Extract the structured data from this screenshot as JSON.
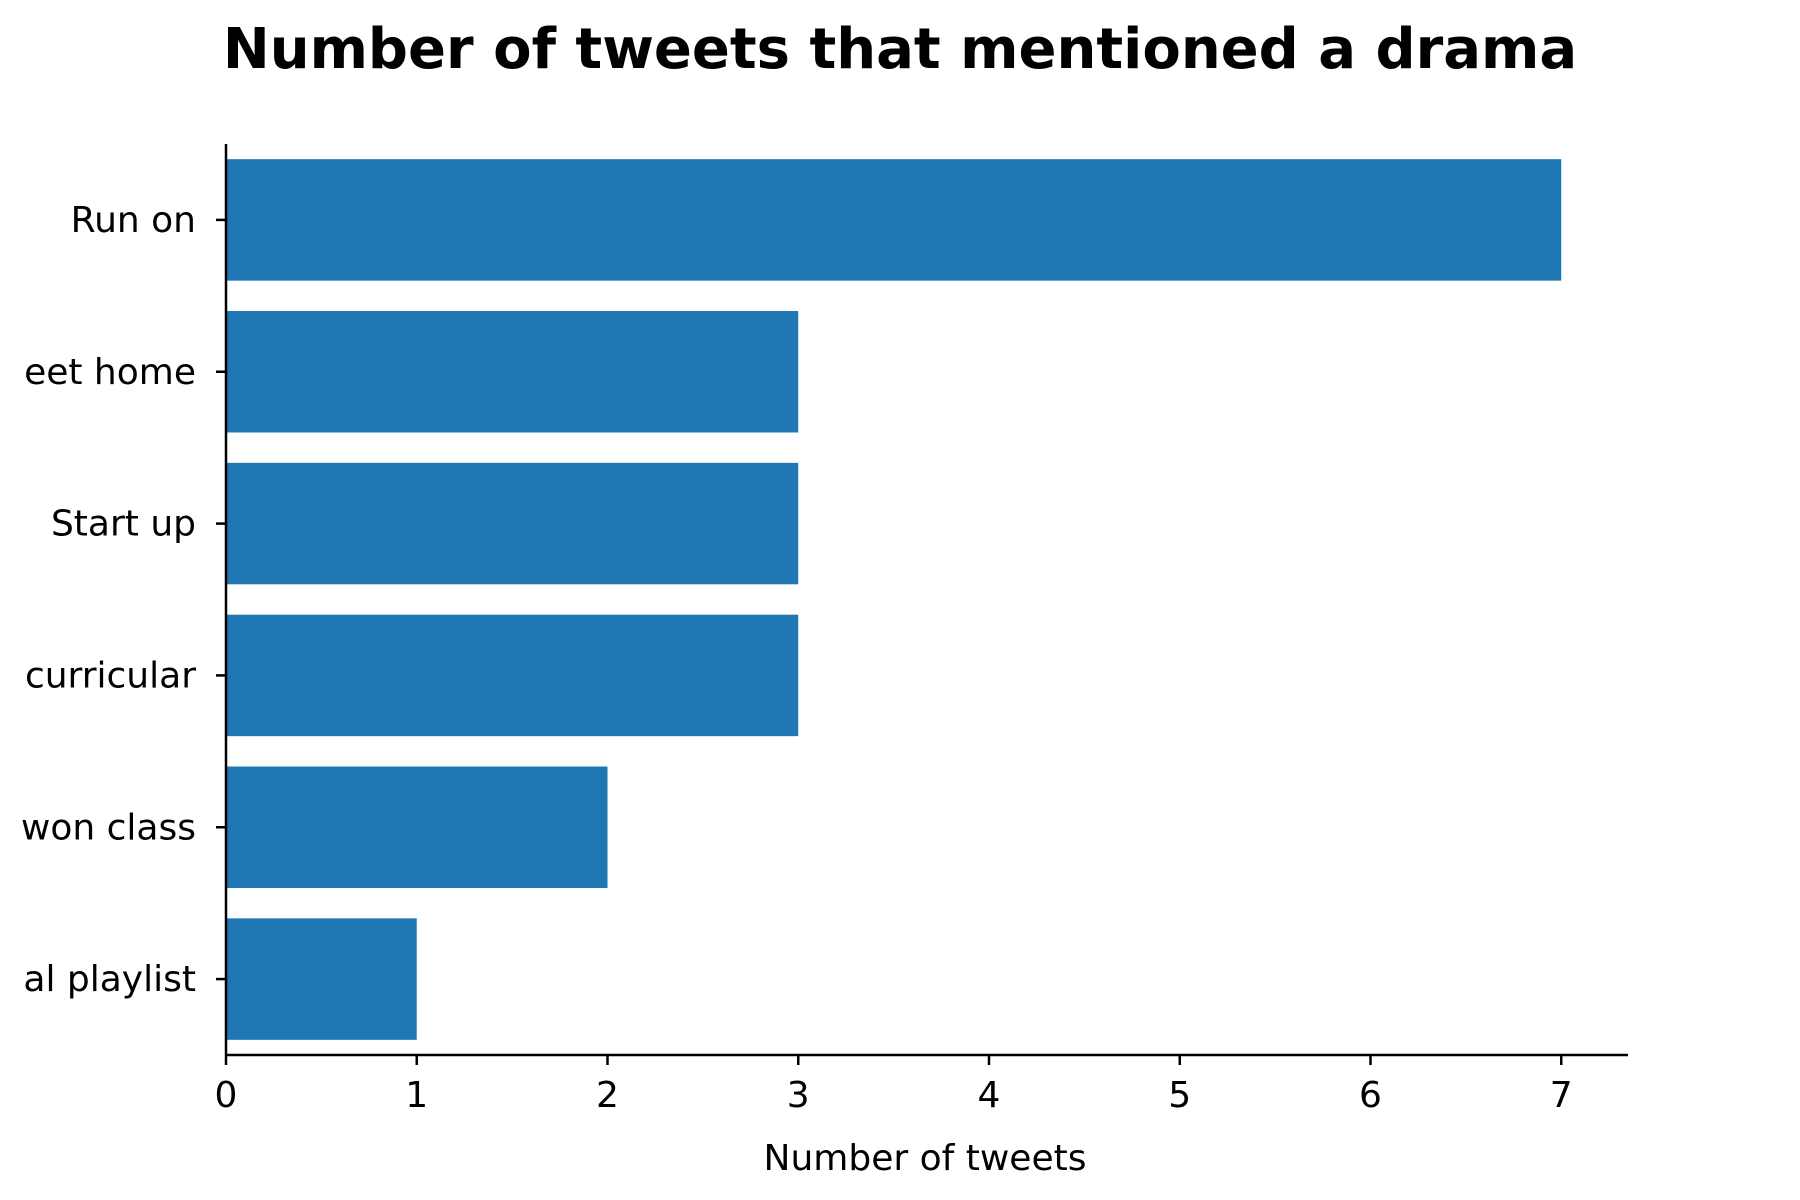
{
  "chart_data": {
    "type": "bar",
    "orientation": "horizontal",
    "title": "Number of tweets that mentioned a drama",
    "xlabel": "Number of tweets",
    "ylabel": "",
    "categories": [
      "Run on",
      "eet home",
      "Start up",
      "curricular",
      "won class",
      "al playlist"
    ],
    "values": [
      7,
      3,
      3,
      3,
      2,
      1
    ],
    "xlim": [
      0,
      7.35
    ],
    "xticks": [
      "0",
      "1",
      "2",
      "3",
      "4",
      "5",
      "6",
      "7"
    ],
    "bar_color": "#1f77b4",
    "grid": false,
    "legend": "none"
  }
}
